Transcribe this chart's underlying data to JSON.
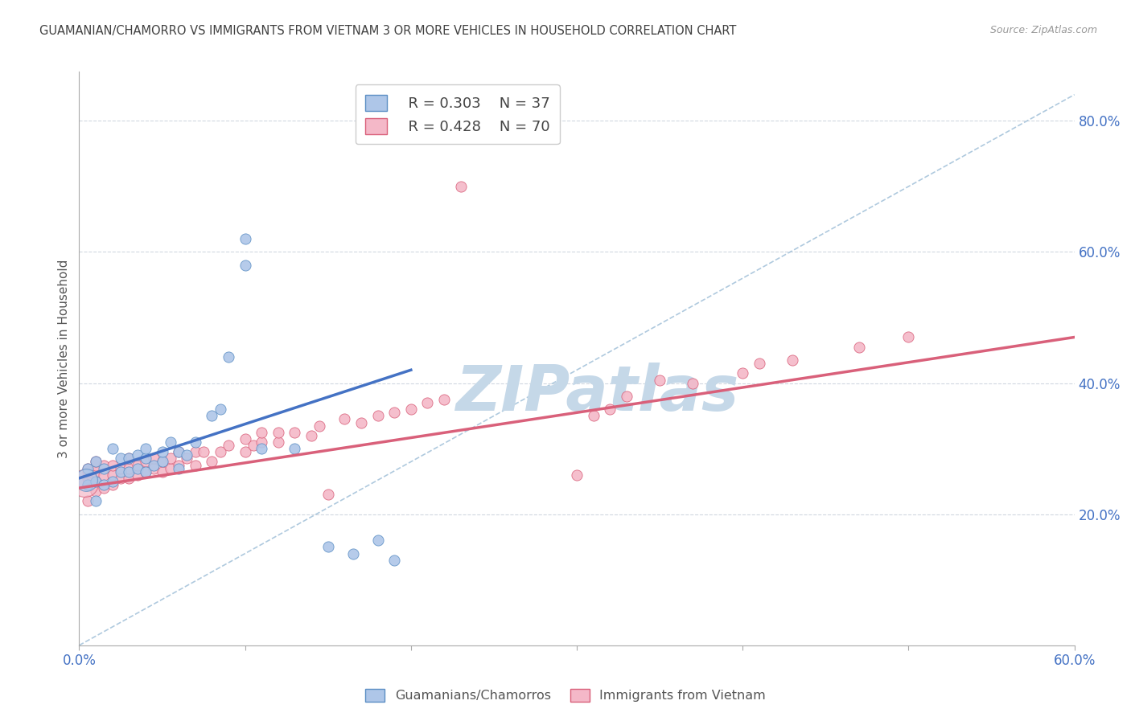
{
  "title": "GUAMANIAN/CHAMORRO VS IMMIGRANTS FROM VIETNAM 3 OR MORE VEHICLES IN HOUSEHOLD CORRELATION CHART",
  "source": "Source: ZipAtlas.com",
  "ylabel": "3 or more Vehicles in Household",
  "xmin": 0.0,
  "xmax": 0.6,
  "ymin": 0.0,
  "ymax": 0.875,
  "right_yticks": [
    0.2,
    0.4,
    0.6,
    0.8
  ],
  "right_yticklabels": [
    "20.0%",
    "40.0%",
    "60.0%",
    "80.0%"
  ],
  "xticks": [
    0.0,
    0.1,
    0.2,
    0.3,
    0.4,
    0.5,
    0.6
  ],
  "xticklabels": [
    "0.0%",
    "",
    "",
    "",
    "",
    "",
    "60.0%"
  ],
  "legend_R1": "R = 0.303",
  "legend_N1": "N = 37",
  "legend_R2": "R = 0.428",
  "legend_N2": "N = 70",
  "color_blue": "#aec6e8",
  "color_blue_edge": "#5b8ec4",
  "color_blue_line": "#4472c4",
  "color_pink": "#f4b8c8",
  "color_pink_edge": "#d9607a",
  "color_pink_line": "#d9607a",
  "color_dashed": "#9bbcd6",
  "watermark": "ZIPatlas",
  "watermark_color": "#c5d8e8",
  "blue_x": [
    0.005,
    0.005,
    0.01,
    0.01,
    0.01,
    0.015,
    0.015,
    0.02,
    0.02,
    0.025,
    0.025,
    0.03,
    0.03,
    0.035,
    0.035,
    0.04,
    0.04,
    0.04,
    0.045,
    0.05,
    0.05,
    0.055,
    0.06,
    0.06,
    0.065,
    0.07,
    0.08,
    0.085,
    0.09,
    0.1,
    0.1,
    0.11,
    0.13,
    0.15,
    0.165,
    0.18,
    0.19
  ],
  "blue_y": [
    0.245,
    0.27,
    0.22,
    0.25,
    0.28,
    0.245,
    0.27,
    0.25,
    0.3,
    0.265,
    0.285,
    0.265,
    0.285,
    0.27,
    0.29,
    0.265,
    0.285,
    0.3,
    0.275,
    0.28,
    0.295,
    0.31,
    0.27,
    0.295,
    0.29,
    0.31,
    0.35,
    0.36,
    0.44,
    0.58,
    0.62,
    0.3,
    0.3,
    0.15,
    0.14,
    0.16,
    0.13
  ],
  "pink_x": [
    0.005,
    0.005,
    0.005,
    0.005,
    0.005,
    0.01,
    0.01,
    0.01,
    0.01,
    0.01,
    0.015,
    0.015,
    0.015,
    0.02,
    0.02,
    0.02,
    0.025,
    0.025,
    0.03,
    0.03,
    0.03,
    0.035,
    0.035,
    0.04,
    0.04,
    0.045,
    0.045,
    0.05,
    0.05,
    0.055,
    0.055,
    0.06,
    0.06,
    0.065,
    0.07,
    0.07,
    0.075,
    0.08,
    0.085,
    0.09,
    0.1,
    0.1,
    0.105,
    0.11,
    0.11,
    0.12,
    0.12,
    0.13,
    0.14,
    0.145,
    0.15,
    0.16,
    0.17,
    0.18,
    0.19,
    0.2,
    0.21,
    0.22,
    0.23,
    0.3,
    0.31,
    0.32,
    0.33,
    0.35,
    0.37,
    0.4,
    0.41,
    0.43,
    0.47,
    0.5
  ],
  "pink_y": [
    0.22,
    0.245,
    0.255,
    0.265,
    0.27,
    0.235,
    0.25,
    0.265,
    0.275,
    0.28,
    0.24,
    0.26,
    0.275,
    0.245,
    0.26,
    0.275,
    0.255,
    0.27,
    0.255,
    0.27,
    0.285,
    0.26,
    0.275,
    0.265,
    0.28,
    0.27,
    0.285,
    0.265,
    0.28,
    0.27,
    0.285,
    0.275,
    0.295,
    0.285,
    0.275,
    0.295,
    0.295,
    0.28,
    0.295,
    0.305,
    0.295,
    0.315,
    0.305,
    0.31,
    0.325,
    0.31,
    0.325,
    0.325,
    0.32,
    0.335,
    0.23,
    0.345,
    0.34,
    0.35,
    0.355,
    0.36,
    0.37,
    0.375,
    0.7,
    0.26,
    0.35,
    0.36,
    0.38,
    0.405,
    0.4,
    0.415,
    0.43,
    0.435,
    0.455,
    0.47
  ],
  "blue_line_x0": 0.0,
  "blue_line_x1": 0.2,
  "blue_line_y0": 0.255,
  "blue_line_y1": 0.42,
  "pink_line_x0": 0.0,
  "pink_line_x1": 0.6,
  "pink_line_y0": 0.24,
  "pink_line_y1": 0.47
}
